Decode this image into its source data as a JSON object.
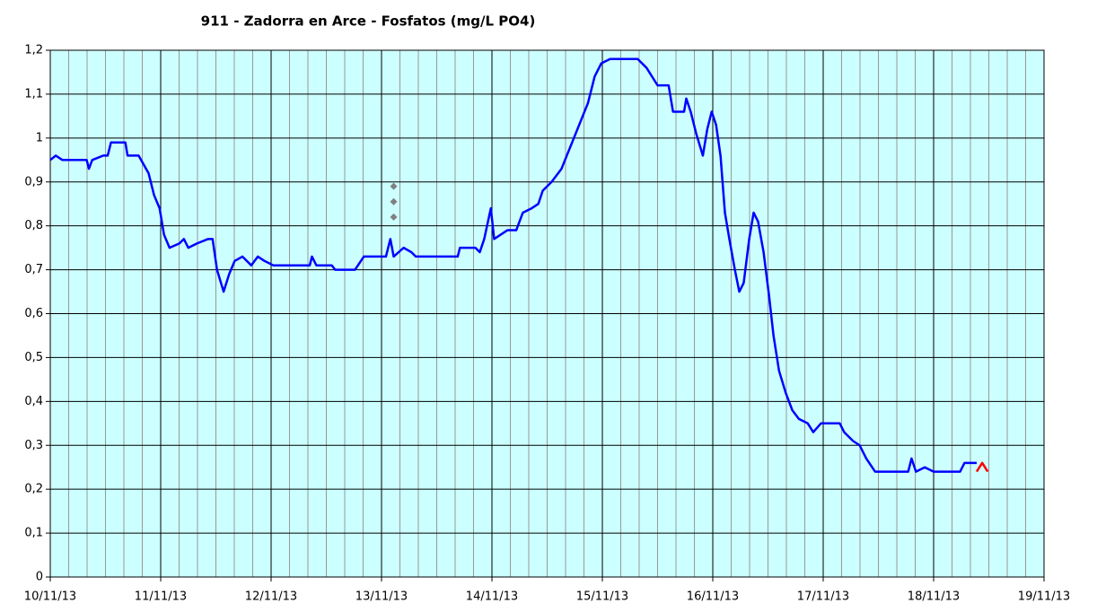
{
  "chart_data": {
    "type": "line",
    "title": "911 - Zadorra en Arce - Fosfatos (mg/L PO4)",
    "xlim": [
      0,
      9
    ],
    "xticks": [
      {
        "value": 0,
        "label": "10/11/13"
      },
      {
        "value": 1,
        "label": "11/11/13"
      },
      {
        "value": 2,
        "label": "12/11/13"
      },
      {
        "value": 3,
        "label": "13/11/13"
      },
      {
        "value": 4,
        "label": "14/11/13"
      },
      {
        "value": 5,
        "label": "15/11/13"
      },
      {
        "value": 6,
        "label": "16/11/13"
      },
      {
        "value": 7,
        "label": "17/11/13"
      },
      {
        "value": 8,
        "label": "18/11/13"
      },
      {
        "value": 9,
        "label": "19/11/13"
      }
    ],
    "ylim": [
      0,
      1.2
    ],
    "yticks": [
      0,
      {
        "value": 0.1,
        "label": "0,1"
      },
      {
        "value": 0.2,
        "label": "0,2"
      },
      {
        "value": 0.3,
        "label": "0,3"
      },
      {
        "value": 0.4,
        "label": "0,4"
      },
      {
        "value": 0.5,
        "label": "0,5"
      },
      {
        "value": 0.6,
        "label": "0,6"
      },
      {
        "value": 0.7,
        "label": "0,7"
      },
      {
        "value": 0.8,
        "label": "0,8"
      },
      {
        "value": 0.9,
        "label": "0,9"
      },
      1,
      {
        "value": 1.1,
        "label": "1,1"
      },
      {
        "value": 1.2,
        "label": "1,2"
      }
    ],
    "grid": true,
    "background": "#ccffff",
    "series": [
      {
        "color": "#0000ff",
        "style": "line",
        "x": [
          0,
          0.05,
          0.11,
          0.33,
          0.35,
          0.38,
          0.48,
          0.52,
          0.55,
          0.68,
          0.7,
          0.8,
          0.89,
          0.94,
          0.99,
          1.03,
          1.08,
          1.17,
          1.21,
          1.25,
          1.33,
          1.43,
          1.47,
          1.51,
          1.57,
          1.62,
          1.67,
          1.74,
          1.82,
          1.88,
          1.94,
          2.02,
          2.35,
          2.37,
          2.41,
          2.55,
          2.58,
          2.76,
          2.84,
          3.04,
          3.08,
          3.11,
          3.2,
          3.27,
          3.31,
          3.69,
          3.71,
          3.85,
          3.89,
          3.93,
          3.99,
          4.02,
          4.14,
          4.22,
          4.28,
          4.36,
          4.42,
          4.46,
          4.54,
          4.63,
          4.71,
          4.79,
          4.87,
          4.93,
          4.99,
          5.07,
          5.32,
          5.4,
          5.5,
          5.6,
          5.64,
          5.74,
          5.76,
          5.8,
          5.85,
          5.91,
          5.95,
          5.99,
          6.03,
          6.07,
          6.11,
          6.15,
          6.2,
          6.24,
          6.28,
          6.33,
          6.37,
          6.41,
          6.46,
          6.51,
          6.55,
          6.6,
          6.66,
          6.72,
          6.78,
          6.86,
          6.91,
          6.98,
          7.15,
          7.19,
          7.27,
          7.33,
          7.39,
          7.47,
          7.77,
          7.8,
          7.84,
          7.92,
          8.0,
          8.24,
          8.28,
          8.39
        ],
        "values": [
          0.95,
          0.96,
          0.95,
          0.95,
          0.93,
          0.95,
          0.96,
          0.96,
          0.99,
          0.99,
          0.96,
          0.96,
          0.92,
          0.87,
          0.84,
          0.78,
          0.75,
          0.76,
          0.77,
          0.75,
          0.76,
          0.77,
          0.77,
          0.7,
          0.65,
          0.69,
          0.72,
          0.73,
          0.71,
          0.73,
          0.72,
          0.71,
          0.71,
          0.73,
          0.71,
          0.71,
          0.7,
          0.7,
          0.73,
          0.73,
          0.77,
          0.73,
          0.75,
          0.74,
          0.73,
          0.73,
          0.75,
          0.75,
          0.74,
          0.77,
          0.84,
          0.77,
          0.79,
          0.79,
          0.83,
          0.84,
          0.85,
          0.88,
          0.9,
          0.93,
          0.98,
          1.03,
          1.08,
          1.14,
          1.17,
          1.18,
          1.18,
          1.16,
          1.12,
          1.12,
          1.06,
          1.06,
          1.09,
          1.06,
          1.01,
          0.96,
          1.02,
          1.06,
          1.03,
          0.96,
          0.83,
          0.77,
          0.7,
          0.65,
          0.67,
          0.77,
          0.83,
          0.81,
          0.74,
          0.64,
          0.55,
          0.47,
          0.42,
          0.38,
          0.36,
          0.35,
          0.33,
          0.35,
          0.35,
          0.33,
          0.31,
          0.3,
          0.27,
          0.24,
          0.24,
          0.27,
          0.24,
          0.25,
          0.24,
          0.24,
          0.26,
          0.26
        ]
      },
      {
        "color": "#ff0000",
        "style": "line",
        "x": [
          8.39,
          8.44,
          8.49
        ],
        "values": [
          0.24,
          0.26,
          0.24
        ]
      },
      {
        "color": "#808080",
        "style": "markers",
        "x": [
          3.11,
          3.11,
          3.11
        ],
        "values": [
          0.89,
          0.855,
          0.82
        ]
      }
    ]
  }
}
